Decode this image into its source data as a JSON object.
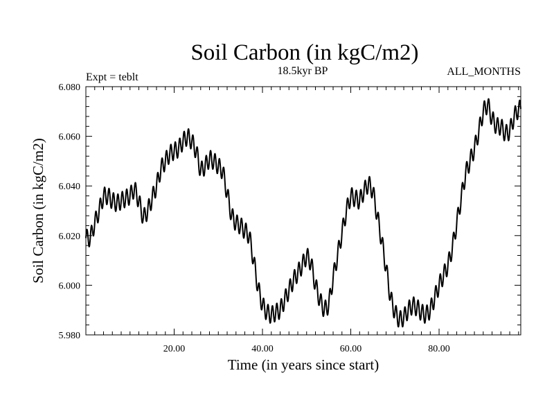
{
  "header": {
    "title": "Soil Carbon (in kgC/m2)",
    "experiment": "Expt = teblt",
    "period": "18.5kyr BP",
    "months": "ALL_MONTHS"
  },
  "chart_data": {
    "type": "line",
    "title": "Soil Carbon (in kgC/m2)",
    "xlabel": "Time (in years since start)",
    "ylabel": "Soil Carbon (in kgC/m2)",
    "xlim": [
      0,
      98.5
    ],
    "ylim": [
      5.98,
      6.08
    ],
    "x_ticks": [
      20,
      40,
      60,
      80
    ],
    "x_tick_labels": [
      "20.00",
      "40.00",
      "60.00",
      "80.00"
    ],
    "y_ticks": [
      5.98,
      6.0,
      6.02,
      6.04,
      6.06,
      6.08
    ],
    "y_tick_labels": [
      "5.980",
      "6.000",
      "6.020",
      "6.040",
      "6.060",
      "6.080"
    ],
    "grid": false,
    "seasonal_cycle_amplitude": 0.0035,
    "seasonal_cycles_per_year": 1,
    "series": [
      {
        "name": "Soil Carbon",
        "color": "#000000",
        "x": [
          0,
          1,
          2,
          3,
          4,
          5,
          6,
          7,
          8,
          9,
          10,
          11,
          12,
          13,
          14,
          15,
          16,
          17,
          18,
          19,
          20,
          21,
          22,
          23,
          24,
          25,
          26,
          27,
          28,
          29,
          30,
          31,
          32,
          33,
          34,
          35,
          36,
          37,
          38,
          39,
          40,
          41,
          42,
          43,
          44,
          45,
          46,
          47,
          48,
          49,
          50,
          51,
          52,
          53,
          54,
          55,
          56,
          57,
          58,
          59,
          60,
          61,
          62,
          63,
          64,
          65,
          66,
          67,
          68,
          69,
          70,
          71,
          72,
          73,
          74,
          75,
          76,
          77,
          78,
          79,
          80,
          81,
          82,
          83,
          84,
          85,
          86,
          87,
          88,
          89,
          90,
          91,
          92,
          93,
          94,
          95,
          96,
          97,
          98
        ],
        "values": [
          6.019,
          6.019,
          6.025,
          6.03,
          6.036,
          6.036,
          6.034,
          6.033,
          6.034,
          6.035,
          6.036,
          6.039,
          6.034,
          6.027,
          6.03,
          6.035,
          6.04,
          6.047,
          6.05,
          6.053,
          6.054,
          6.055,
          6.058,
          6.06,
          6.058,
          6.054,
          6.046,
          6.048,
          6.051,
          6.05,
          6.048,
          6.046,
          6.037,
          6.028,
          6.025,
          6.024,
          6.022,
          6.02,
          6.01,
          5.999,
          5.992,
          5.989,
          5.988,
          5.989,
          5.99,
          5.994,
          5.998,
          6.002,
          6.005,
          6.008,
          6.012,
          6.009,
          6.0,
          5.994,
          5.99,
          5.992,
          6.003,
          6.012,
          6.021,
          6.03,
          6.036,
          6.035,
          6.034,
          6.038,
          6.041,
          6.038,
          6.028,
          6.018,
          6.007,
          5.995,
          5.989,
          5.986,
          5.987,
          5.99,
          5.992,
          5.991,
          5.989,
          5.988,
          5.99,
          5.995,
          6.0,
          6.004,
          6.008,
          6.015,
          6.025,
          6.035,
          6.045,
          6.05,
          6.055,
          6.062,
          6.07,
          6.073,
          6.067,
          6.064,
          6.064,
          6.061,
          6.062,
          6.068,
          6.071
        ]
      }
    ]
  }
}
